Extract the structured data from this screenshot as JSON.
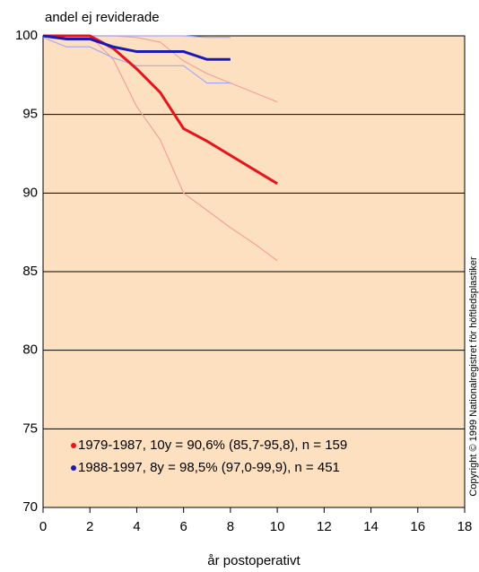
{
  "chart_data": {
    "type": "line",
    "title": "andel ej reviderade",
    "xlabel": "år postoperativt",
    "annotation": "Copyright © 1999 Nationalregistret för höftledsplastiker",
    "xlim": [
      0,
      18
    ],
    "xticks": [
      0,
      2,
      4,
      6,
      8,
      10,
      12,
      14,
      16,
      18
    ],
    "ylim": [
      70,
      100
    ],
    "yticks": [
      70,
      75,
      80,
      85,
      90,
      95,
      100
    ],
    "grid": true,
    "legend": "lower left",
    "series": [
      {
        "name": "1979-1987, 10y = 90,6% (85,7-95,8), n = 159",
        "color": "#e8141c",
        "width": 3,
        "x": [
          0,
          1,
          2,
          3,
          4,
          5,
          6,
          7,
          8,
          9,
          10
        ],
        "values": [
          100,
          100,
          100,
          99.2,
          97.9,
          96.4,
          94.1,
          93.3,
          92.4,
          91.5,
          90.6
        ]
      },
      {
        "name": "1988-1997,   8y = 98,5% (97,0-99,9), n = 451",
        "color": "#1a1ab8",
        "width": 3,
        "x": [
          0,
          1,
          2,
          3,
          4,
          5,
          6,
          7,
          8
        ],
        "values": [
          100,
          99.8,
          99.8,
          99.3,
          99.0,
          99.0,
          99.0,
          98.5,
          98.5
        ]
      }
    ],
    "bands": [
      {
        "color": "#f4a0a0",
        "x": [
          0,
          1,
          2,
          3,
          4,
          5,
          6,
          7,
          8,
          9,
          10
        ],
        "values": [
          100,
          100,
          100,
          100,
          99.9,
          99.6,
          98.4,
          97.6,
          97.0,
          96.4,
          95.8
        ]
      },
      {
        "color": "#f4a0a0",
        "x": [
          0,
          1,
          2,
          3,
          4,
          5,
          6,
          7,
          8,
          9,
          10
        ],
        "values": [
          100,
          100,
          100,
          98.5,
          95.5,
          93.4,
          90.0,
          88.9,
          87.8,
          86.8,
          85.7
        ]
      },
      {
        "color": "#a8a8f0",
        "x": [
          0,
          1,
          2,
          3,
          4,
          5,
          6,
          7,
          8
        ],
        "values": [
          100,
          100,
          100,
          100,
          100,
          100,
          100,
          99.9,
          99.9
        ]
      },
      {
        "color": "#a8a8f0",
        "x": [
          0,
          1,
          2,
          3,
          4,
          5,
          6,
          7,
          8
        ],
        "values": [
          99.9,
          99.3,
          99.3,
          98.6,
          98.1,
          98.1,
          98.1,
          97.0,
          97.0
        ]
      }
    ]
  }
}
